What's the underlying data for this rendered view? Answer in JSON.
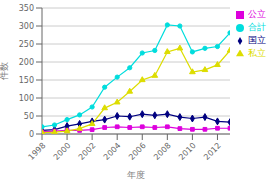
{
  "chart_data": {
    "type": "line",
    "xlabel": "年度",
    "ylabel": "件数",
    "x": [
      1998,
      1999,
      2000,
      2001,
      2002,
      2003,
      2004,
      2005,
      2006,
      2007,
      2008,
      2009,
      2010,
      2011,
      2012,
      2013
    ],
    "series": [
      {
        "name": "国立",
        "color": "#000080",
        "marker": "diamond",
        "values": [
          10,
          12,
          22,
          28,
          35,
          40,
          50,
          48,
          55,
          52,
          55,
          47,
          43,
          47,
          35,
          33
        ]
      },
      {
        "name": "公立",
        "color": "#DD00DD",
        "marker": "square",
        "values": [
          6,
          8,
          10,
          10,
          12,
          18,
          20,
          18,
          20,
          18,
          20,
          15,
          13,
          13,
          16,
          16
        ]
      },
      {
        "name": "私立",
        "color": "#DDDD00",
        "marker": "triangle",
        "values": [
          4,
          5,
          8,
          15,
          28,
          72,
          88,
          118,
          150,
          162,
          228,
          238,
          172,
          178,
          192,
          232
        ]
      },
      {
        "name": "合計",
        "color": "#00DDDD",
        "marker": "circle",
        "values": [
          20,
          25,
          40,
          53,
          75,
          130,
          158,
          184,
          225,
          232,
          303,
          300,
          228,
          238,
          243,
          281
        ]
      }
    ],
    "xlim": [
      1998,
      2013
    ],
    "xticks": [
      1998,
      2000,
      2002,
      2004,
      2006,
      2008,
      2010,
      2012
    ],
    "ylim": [
      0,
      350
    ],
    "yticks": [
      0,
      50,
      100,
      150,
      200,
      250,
      300,
      350
    ],
    "grid": "y",
    "legend": "right"
  }
}
